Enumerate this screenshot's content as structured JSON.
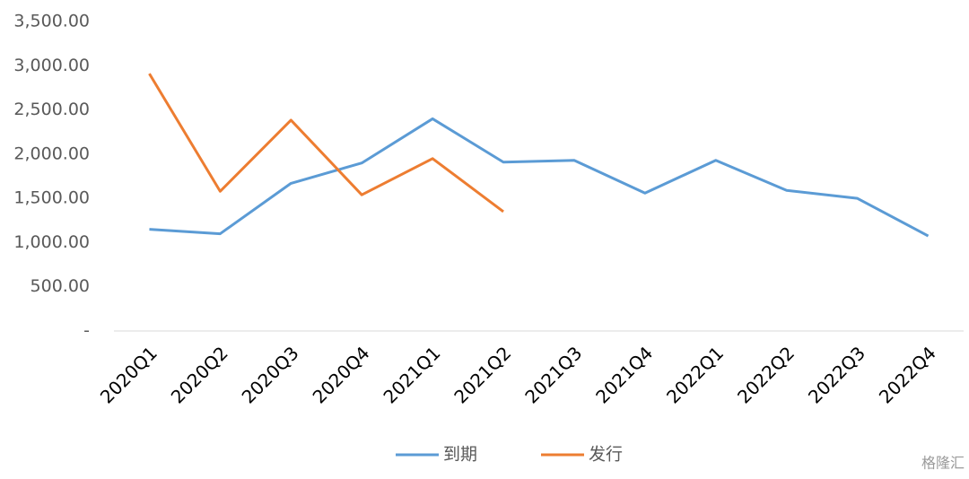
{
  "chart_data": {
    "type": "line",
    "categories": [
      "2020Q1",
      "2020Q2",
      "2020Q3",
      "2020Q4",
      "2021Q1",
      "2021Q2",
      "2021Q3",
      "2021Q4",
      "2022Q1",
      "2022Q2",
      "2022Q3",
      "2022Q4"
    ],
    "series": [
      {
        "name": "到期",
        "color": "#5b9bd5",
        "values": [
          1150,
          1100,
          1670,
          1900,
          2400,
          1910,
          1930,
          1560,
          1930,
          1590,
          1500,
          1075
        ]
      },
      {
        "name": "发行",
        "color": "#ed7d31",
        "values": [
          2910,
          1580,
          2385,
          1540,
          1950,
          1350,
          null,
          null,
          null,
          null,
          null,
          null
        ]
      }
    ],
    "ylim": [
      0,
      3500
    ],
    "yticks": [
      {
        "value": 0,
        "label": "-"
      },
      {
        "value": 500,
        "label": "500.00"
      },
      {
        "value": 1000,
        "label": "1,000.00"
      },
      {
        "value": 1500,
        "label": "1,500.00"
      },
      {
        "value": 2000,
        "label": "2,000.00"
      },
      {
        "value": 2500,
        "label": "2,500.00"
      },
      {
        "value": 3000,
        "label": "3,000.00"
      },
      {
        "value": 3500,
        "label": "3,500.00"
      }
    ],
    "grid": false,
    "legend": "bottom",
    "watermark": "格隆汇"
  }
}
